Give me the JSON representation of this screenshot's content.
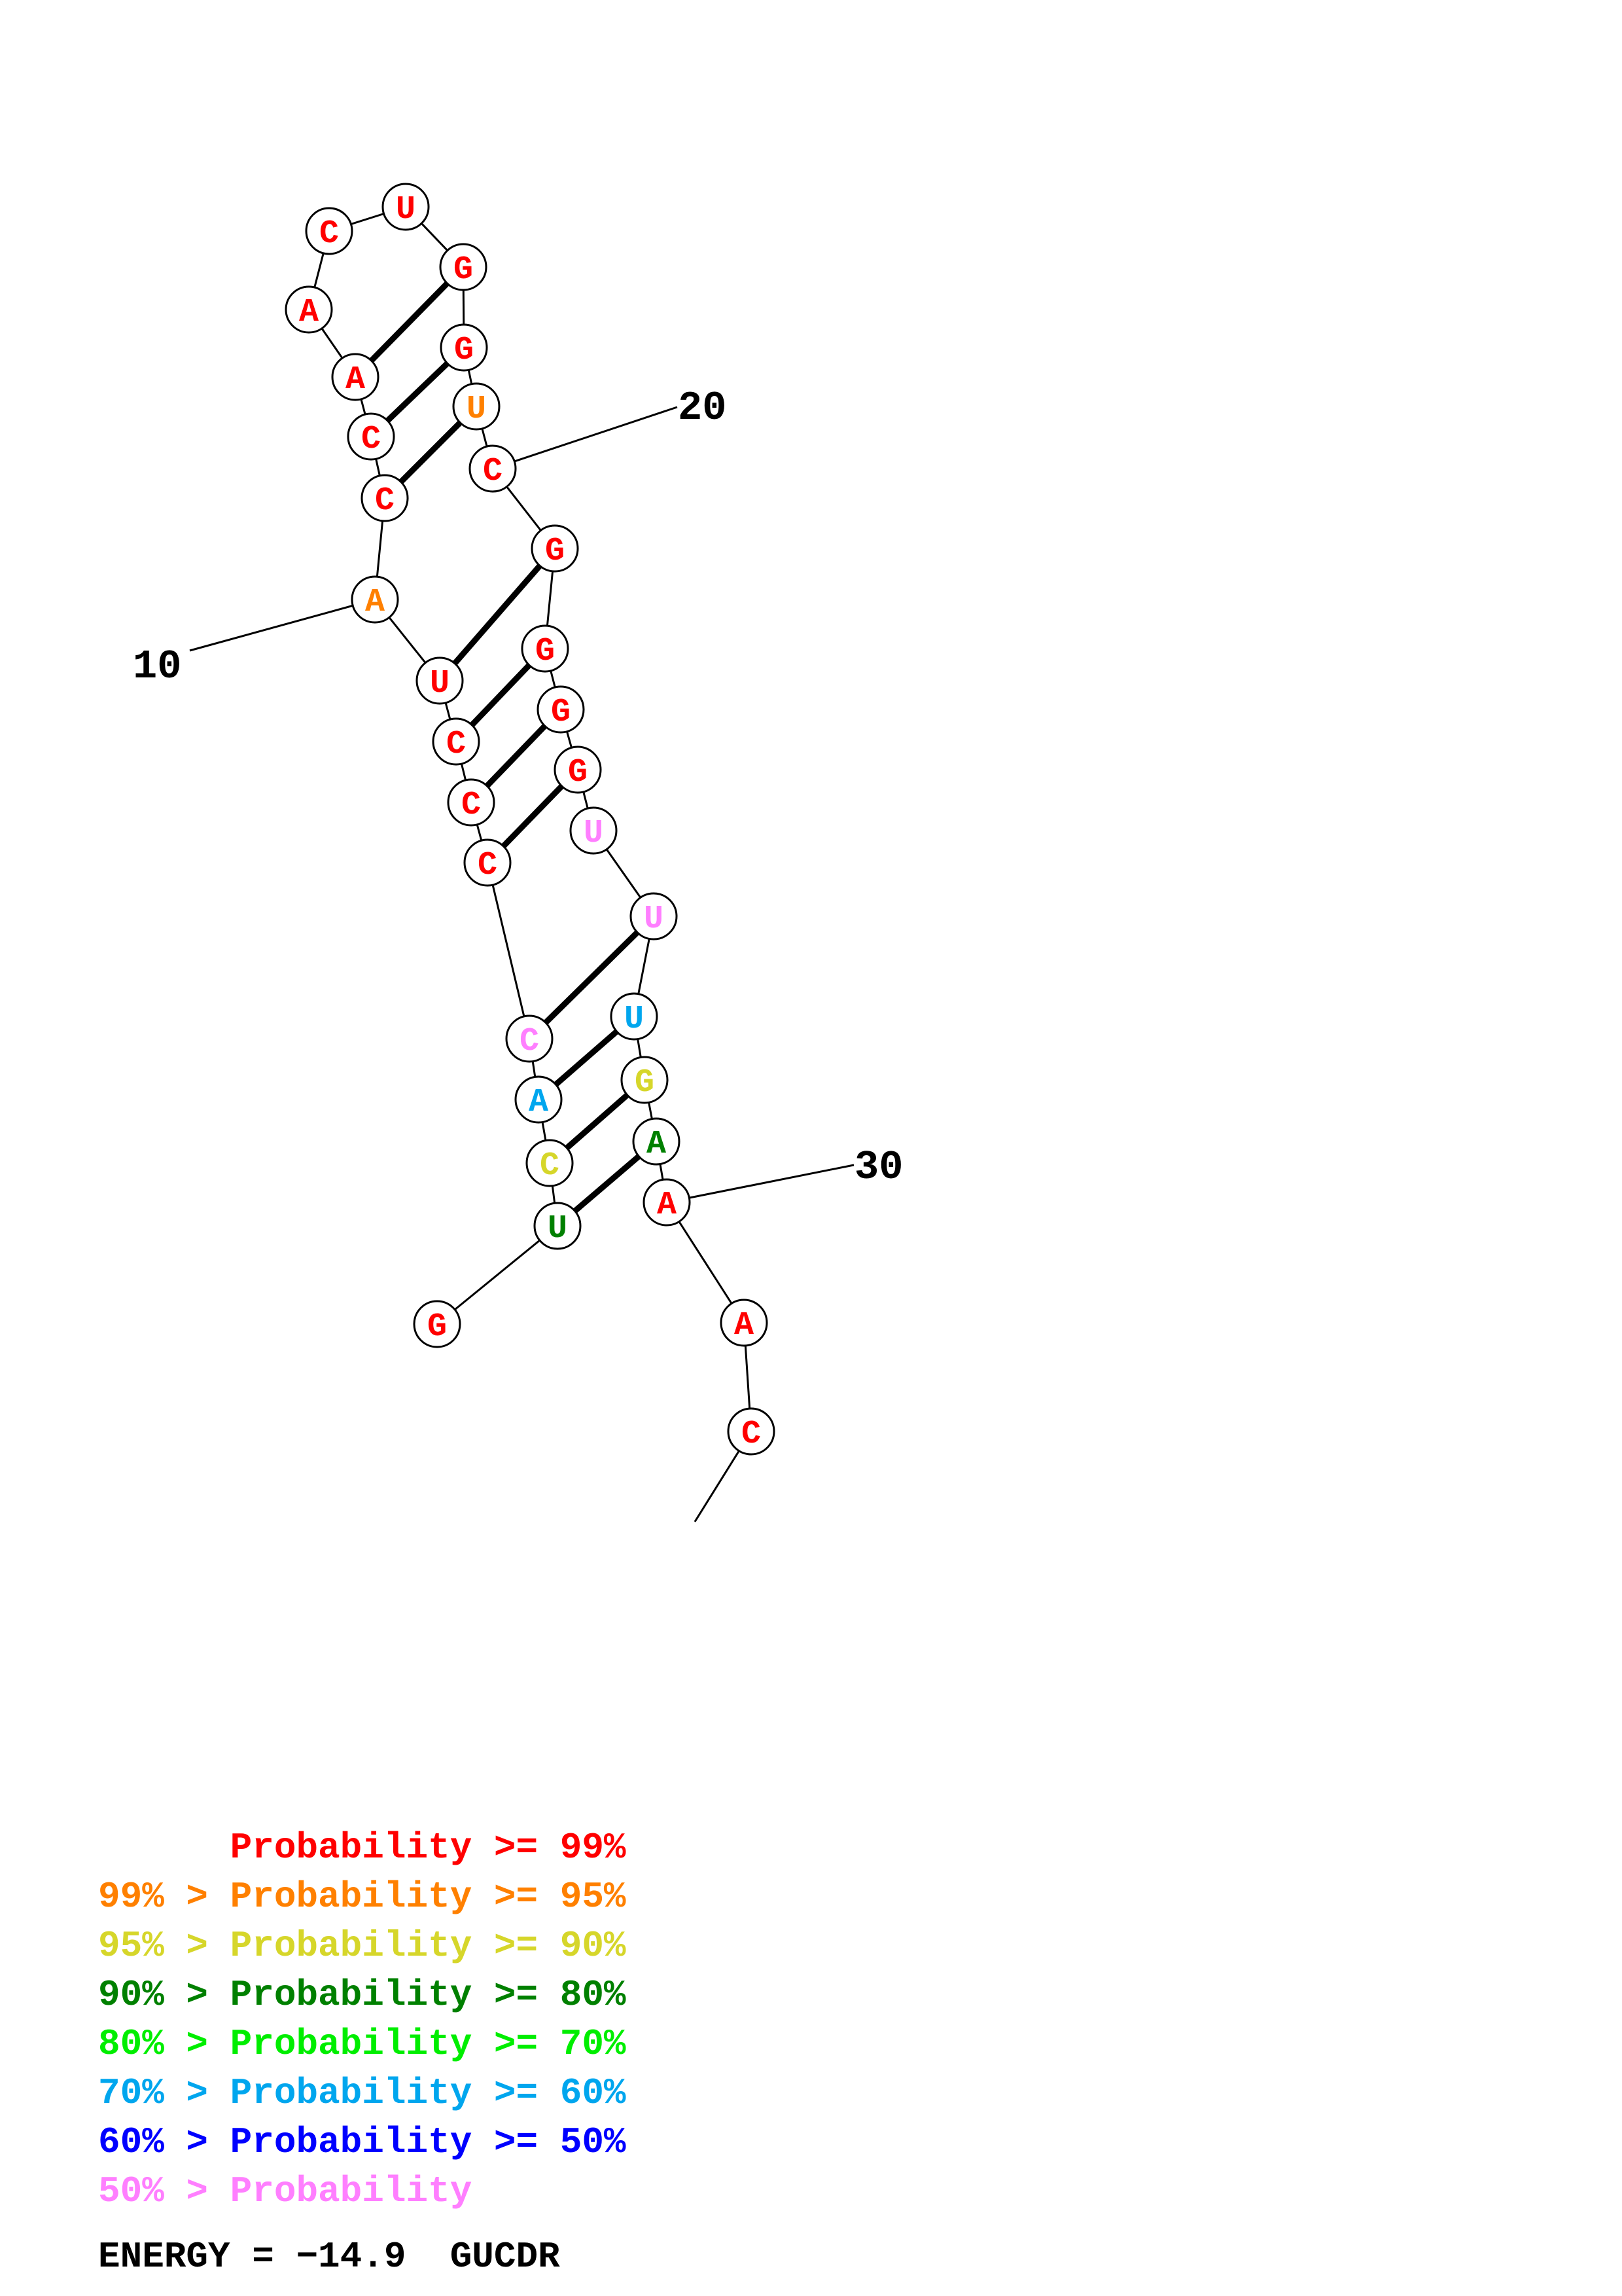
{
  "structure": {
    "sequence": [
      "G",
      "U",
      "C",
      "A",
      "C",
      "C",
      "C",
      "C",
      "U",
      "A",
      "C",
      "C",
      "A",
      "A",
      "C",
      "U",
      "G",
      "G",
      "U",
      "C",
      "G",
      "G",
      "G",
      "G",
      "U",
      "U",
      "U",
      "G",
      "A",
      "A",
      "A",
      "C"
    ],
    "probability_class": [
      0,
      3,
      2,
      5,
      7,
      0,
      0,
      0,
      0,
      1,
      0,
      0,
      0,
      0,
      0,
      0,
      0,
      0,
      1,
      0,
      0,
      0,
      0,
      0,
      7,
      7,
      5,
      2,
      3,
      0,
      0,
      0
    ],
    "pairs": [
      [
        2,
        29
      ],
      [
        3,
        28
      ],
      [
        4,
        27
      ],
      [
        5,
        26
      ],
      [
        6,
        24
      ],
      [
        7,
        23
      ],
      [
        8,
        22
      ],
      [
        9,
        21
      ],
      [
        11,
        19
      ],
      [
        12,
        18
      ],
      [
        13,
        17
      ]
    ],
    "position_labels": [
      {
        "nt": 10,
        "text": "10"
      },
      {
        "nt": 20,
        "text": "20"
      },
      {
        "nt": 30,
        "text": "30"
      }
    ]
  },
  "legend": {
    "classes": [
      {
        "color": "#ff0000",
        "text": "      Probability >= 99%"
      },
      {
        "color": "#ff8000",
        "text": "99% > Probability >= 95%"
      },
      {
        "color": "#d6d62a",
        "text": "95% > Probability >= 90%"
      },
      {
        "color": "#008000",
        "text": "90% > Probability >= 80%"
      },
      {
        "color": "#00ee00",
        "text": "80% > Probability >= 70%"
      },
      {
        "color": "#00a6ee",
        "text": "70% > Probability >= 60%"
      },
      {
        "color": "#0000ff",
        "text": "60% > Probability >= 50%"
      },
      {
        "color": "#ff7fff",
        "text": "50% > Probability"
      }
    ]
  },
  "energy": {
    "text": "ENERGY = −14.9  GUCDR"
  }
}
